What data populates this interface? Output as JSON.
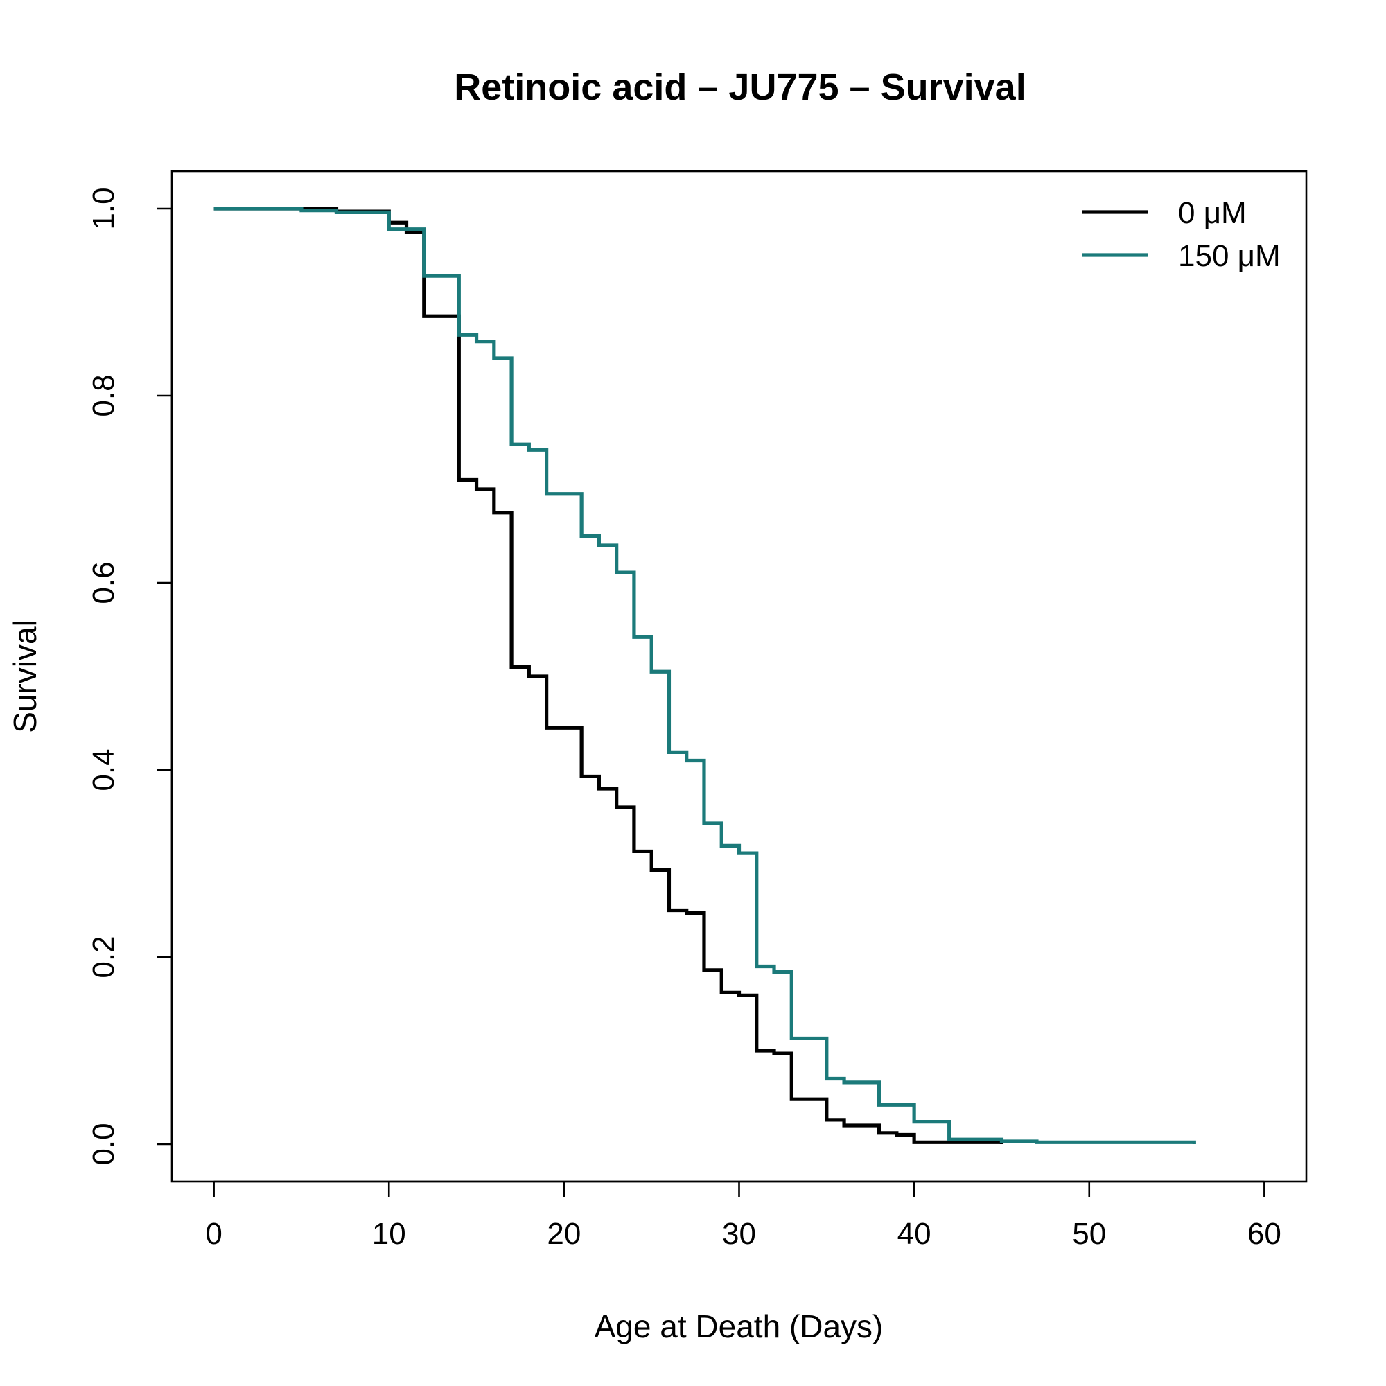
{
  "chart_data": {
    "type": "line",
    "step": true,
    "title": "Retinoic acid – JU775 – Survival",
    "xlabel": "Age at Death (Days)",
    "ylabel": "Survival",
    "xlim": [
      -2.4,
      62.4
    ],
    "ylim": [
      -0.04,
      1.04
    ],
    "xticks": [
      0,
      10,
      20,
      30,
      40,
      50,
      60
    ],
    "xtick_labels": [
      "0",
      "10",
      "20",
      "30",
      "40",
      "50",
      "60"
    ],
    "yticks": [
      0.0,
      0.2,
      0.4,
      0.6,
      0.8,
      1.0
    ],
    "ytick_labels": [
      "0.0",
      "0.2",
      "0.4",
      "0.6",
      "0.8",
      "1.0"
    ],
    "legend_position": "top-right",
    "series": [
      {
        "name": "0 μM",
        "color": "#000000",
        "x": [
          0,
          7,
          10,
          11,
          12,
          14,
          15,
          16,
          17,
          18,
          19,
          21,
          22,
          23,
          24,
          25,
          26,
          27,
          28,
          29,
          30,
          31,
          32,
          33,
          35,
          36,
          38,
          39,
          40,
          45
        ],
        "y": [
          1.0,
          0.997,
          0.985,
          0.975,
          0.885,
          0.71,
          0.7,
          0.675,
          0.51,
          0.5,
          0.445,
          0.393,
          0.38,
          0.36,
          0.313,
          0.293,
          0.25,
          0.247,
          0.186,
          0.162,
          0.159,
          0.1,
          0.097,
          0.048,
          0.026,
          0.02,
          0.012,
          0.01,
          0.002,
          0.0
        ]
      },
      {
        "name": "150 μM",
        "color": "#1b7a7a",
        "x": [
          0,
          5,
          7,
          10,
          12,
          14,
          15,
          16,
          17,
          18,
          19,
          21,
          22,
          23,
          24,
          25,
          26,
          27,
          28,
          29,
          30,
          31,
          32,
          33,
          35,
          36,
          38,
          40,
          42,
          45,
          47,
          56
        ],
        "y": [
          1.0,
          0.998,
          0.996,
          0.978,
          0.928,
          0.865,
          0.858,
          0.84,
          0.748,
          0.742,
          0.695,
          0.65,
          0.64,
          0.611,
          0.542,
          0.505,
          0.419,
          0.41,
          0.343,
          0.319,
          0.311,
          0.19,
          0.184,
          0.113,
          0.07,
          0.066,
          0.042,
          0.024,
          0.005,
          0.003,
          0.002,
          0.0
        ]
      }
    ]
  }
}
